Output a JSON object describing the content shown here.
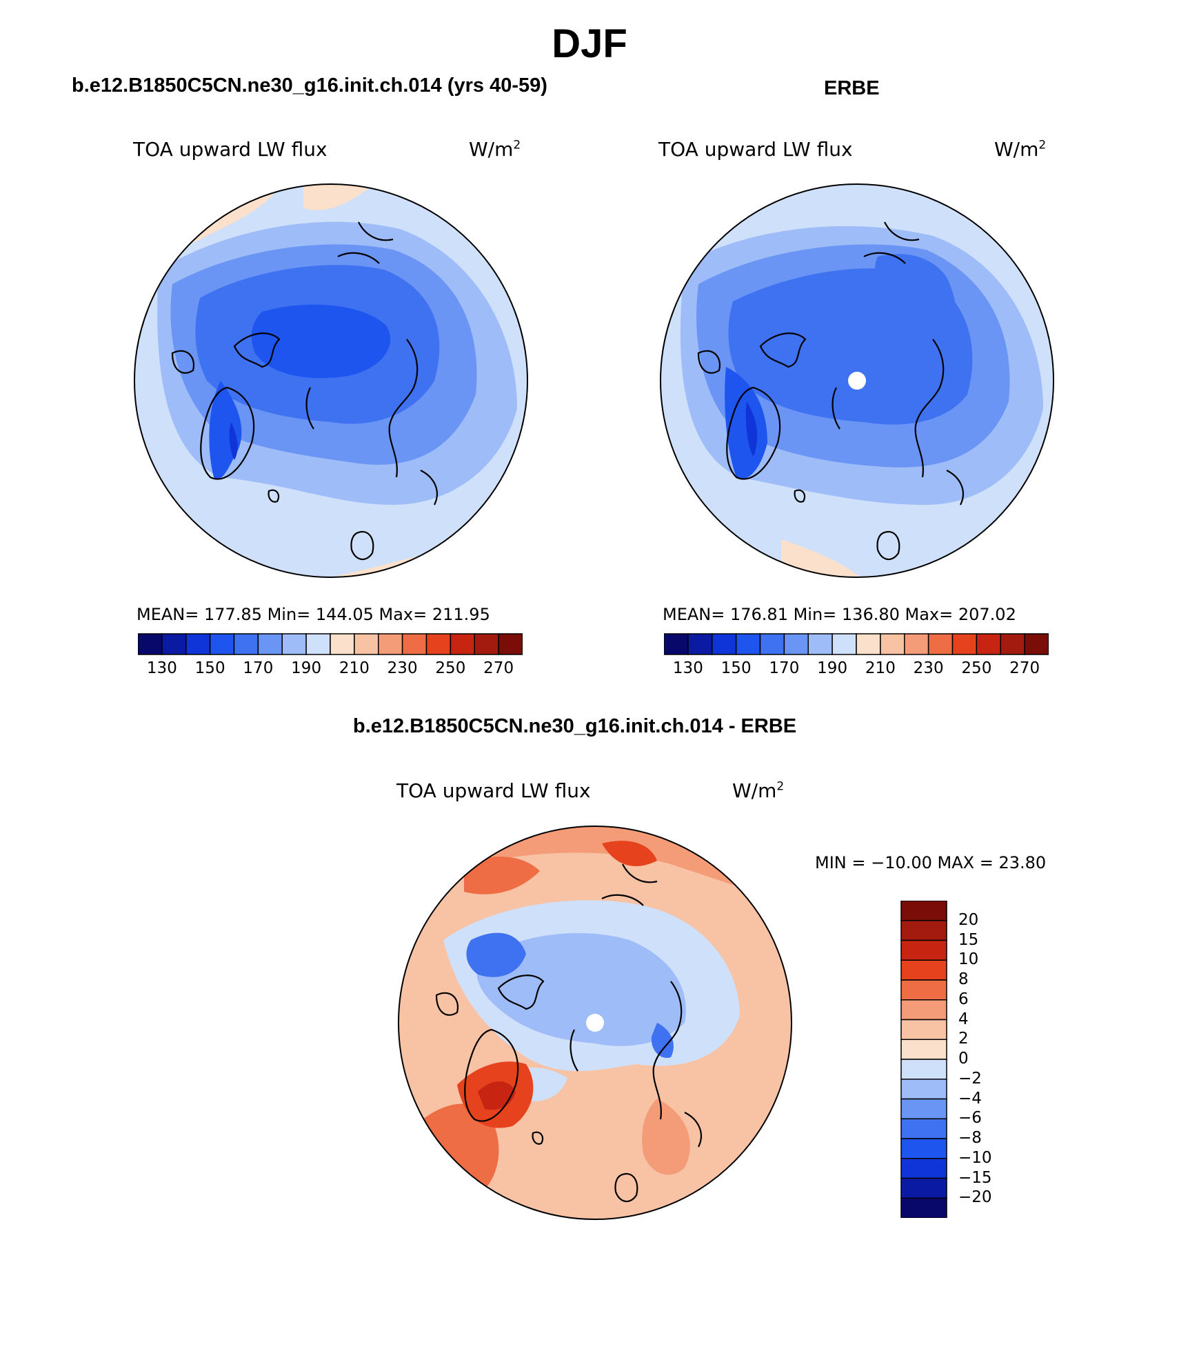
{
  "figure": {
    "title": "DJF"
  },
  "panels": [
    {
      "title": "b.e12.B1850C5CN.ne30_g16.init.ch.014 (yrs 40-59)",
      "variable": "TOA upward LW flux",
      "units": "W/m",
      "units_exp": "2",
      "stats": "MEAN= 177.85   Min= 144.05   Max= 211.95"
    },
    {
      "title": "ERBE",
      "variable": "TOA upward LW flux",
      "units": "W/m",
      "units_exp": "2",
      "stats": "MEAN= 176.81   Min= 136.80   Max= 207.02"
    },
    {
      "title": "b.e12.B1850C5CN.ne30_g16.init.ch.014 - ERBE",
      "variable": "TOA upward LW flux",
      "units": "W/m",
      "units_exp": "2",
      "stats": "MIN = −10.00 MAX =   23.80"
    }
  ],
  "colorbar_abs": {
    "labels": [
      "130",
      "150",
      "170",
      "190",
      "210",
      "230",
      "250",
      "270"
    ],
    "colors": [
      "#08086a",
      "#0a1aa3",
      "#0f35d8",
      "#1f55ef",
      "#3f72f0",
      "#6b95f4",
      "#9ebcf8",
      "#cfe0fb",
      "#fbe0cc",
      "#f8c2a4",
      "#f49b77",
      "#ee6d44",
      "#e5421d",
      "#c72412",
      "#a31a0e",
      "#7a0d08"
    ]
  },
  "colorbar_diff": {
    "labels": [
      "20",
      "15",
      "10",
      "8",
      "6",
      "4",
      "2",
      "0",
      "−2",
      "−4",
      "−6",
      "−8",
      "−10",
      "−15",
      "−20"
    ],
    "colors": [
      "#7a0d08",
      "#a31a0e",
      "#c72412",
      "#e5421d",
      "#ee6d44",
      "#f49b77",
      "#f8c2a4",
      "#fbe0cc",
      "#cfe0fb",
      "#9ebcf8",
      "#6b95f4",
      "#3f72f0",
      "#1f55ef",
      "#0f35d8",
      "#0a1aa3",
      "#08086a"
    ]
  }
}
